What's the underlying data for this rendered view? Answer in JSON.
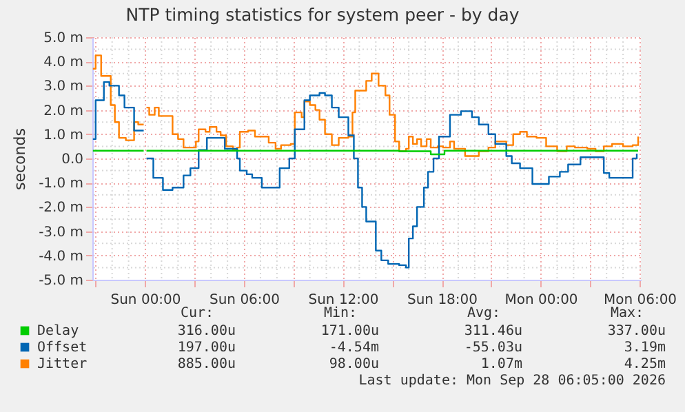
{
  "chart_data": {
    "type": "step",
    "title": "NTP timing statistics for system peer - by day",
    "ylabel": "seconds",
    "xlim": [
      "2026-09-26T20:48",
      "2026-09-28T06:05"
    ],
    "xticks": [
      {
        "value": "2026-09-26T21:00",
        "label": null
      },
      {
        "value": "2026-09-27T00:00",
        "label": "Sun 00:00"
      },
      {
        "value": "2026-09-27T03:00",
        "label": null
      },
      {
        "value": "2026-09-27T06:00",
        "label": "Sun 06:00"
      },
      {
        "value": "2026-09-27T09:00",
        "label": null
      },
      {
        "value": "2026-09-27T12:00",
        "label": "Sun 12:00"
      },
      {
        "value": "2026-09-27T15:00",
        "label": null
      },
      {
        "value": "2026-09-27T18:00",
        "label": "Sun 18:00"
      },
      {
        "value": "2026-09-27T21:00",
        "label": null
      },
      {
        "value": "2026-09-28T00:00",
        "label": "Mon 00:00"
      },
      {
        "value": "2026-09-28T03:00",
        "label": null
      },
      {
        "value": "2026-09-28T06:00",
        "label": "Mon 06:00"
      }
    ],
    "ylim": [
      -5,
      5
    ],
    "yticks": [
      {
        "value": -5,
        "label": "-5.0 m"
      },
      {
        "value": -4,
        "label": "-4.0 m"
      },
      {
        "value": -3,
        "label": "-3.0 m"
      },
      {
        "value": -2,
        "label": "-2.0 m"
      },
      {
        "value": -1,
        "label": "-1.0 m"
      },
      {
        "value": 0,
        "label": "0.0"
      },
      {
        "value": 1,
        "label": "1.0 m"
      },
      {
        "value": 2,
        "label": "2.0 m"
      },
      {
        "value": 3,
        "label": "3.0 m"
      },
      {
        "value": 4,
        "label": "4.0 m"
      },
      {
        "value": 5,
        "label": "5.0 m"
      }
    ],
    "grid": true,
    "legend": "bottom",
    "series": [
      {
        "name": "Delay",
        "color": "#00cc00",
        "x": [
          "2026-09-26T20:50",
          "2026-09-26T23:55",
          "2026-09-27T00:00",
          "2026-09-27T00:05",
          "2026-09-27T15:20",
          "2026-09-27T15:25",
          "2026-09-27T17:00",
          "2026-09-27T17:20",
          "2026-09-27T18:00",
          "2026-09-27T18:10",
          "2026-09-28T05:55"
        ],
        "values": [
          0.32,
          0.32,
          null,
          0.32,
          0.32,
          0.3,
          0.3,
          0.17,
          0.17,
          0.32,
          0.32
        ]
      },
      {
        "name": "Offset",
        "color": "#0066b3",
        "x": [
          "2026-09-26T20:50",
          "2026-09-26T21:00",
          "2026-09-26T21:30",
          "2026-09-26T21:50",
          "2026-09-26T22:25",
          "2026-09-26T22:45",
          "2026-09-26T23:20",
          "2026-09-26T23:55",
          "2026-09-27T00:00",
          "2026-09-27T00:05",
          "2026-09-27T00:30",
          "2026-09-27T01:05",
          "2026-09-27T01:40",
          "2026-09-27T02:20",
          "2026-09-27T02:45",
          "2026-09-27T03:15",
          "2026-09-27T03:45",
          "2026-09-27T04:50",
          "2026-09-27T05:35",
          "2026-09-27T05:45",
          "2026-09-27T06:10",
          "2026-09-27T06:30",
          "2026-09-27T07:05",
          "2026-09-27T08:10",
          "2026-09-27T08:45",
          "2026-09-27T09:05",
          "2026-09-27T09:40",
          "2026-09-27T10:00",
          "2026-09-27T10:35",
          "2026-09-27T10:55",
          "2026-09-27T11:20",
          "2026-09-27T11:45",
          "2026-09-27T12:20",
          "2026-09-27T12:40",
          "2026-09-27T12:55",
          "2026-09-27T13:10",
          "2026-09-27T13:25",
          "2026-09-27T14:00",
          "2026-09-27T14:20",
          "2026-09-27T14:45",
          "2026-09-27T15:25",
          "2026-09-27T15:50",
          "2026-09-27T16:00",
          "2026-09-27T16:15",
          "2026-09-27T16:30",
          "2026-09-27T16:55",
          "2026-09-27T17:10",
          "2026-09-27T17:30",
          "2026-09-27T17:50",
          "2026-09-27T18:30",
          "2026-09-27T19:10",
          "2026-09-27T19:50",
          "2026-09-27T20:15",
          "2026-09-27T20:50",
          "2026-09-27T21:15",
          "2026-09-27T21:55",
          "2026-09-27T22:15",
          "2026-09-27T22:45",
          "2026-09-27T23:30",
          "2026-09-28T00:30",
          "2026-09-28T01:10",
          "2026-09-28T01:40",
          "2026-09-28T02:25",
          "2026-09-28T02:50",
          "2026-09-28T03:50",
          "2026-09-28T04:10",
          "2026-09-28T05:25",
          "2026-09-28T05:35",
          "2026-09-28T05:50"
        ],
        "values": [
          0.8,
          2.4,
          3.15,
          3.0,
          2.6,
          2.1,
          1.15,
          1.15,
          null,
          0.0,
          -0.8,
          -1.3,
          -1.2,
          -0.7,
          -0.4,
          0.35,
          0.85,
          0.4,
          0.0,
          -0.5,
          -0.65,
          -0.8,
          -1.2,
          -0.4,
          0.0,
          1.2,
          2.4,
          2.6,
          2.7,
          2.6,
          2.1,
          1.7,
          0.95,
          0.0,
          -1.2,
          -2.0,
          -2.6,
          -3.8,
          -4.2,
          -4.35,
          -4.4,
          -4.5,
          -3.3,
          -2.8,
          -2.0,
          -1.2,
          -0.55,
          0.0,
          0.9,
          1.8,
          1.95,
          1.7,
          1.4,
          1.0,
          0.6,
          0.1,
          -0.2,
          -0.4,
          -1.05,
          -0.75,
          -0.55,
          -0.25,
          0.05,
          0.05,
          -0.6,
          -0.8,
          -0.8,
          0.0,
          0.2
        ]
      },
      {
        "name": "Jitter",
        "color": "#ff8000",
        "x": [
          "2026-09-26T20:50",
          "2026-09-26T21:00",
          "2026-09-26T21:15",
          "2026-09-26T21:20",
          "2026-09-26T21:35",
          "2026-09-26T21:55",
          "2026-09-26T22:10",
          "2026-09-26T22:25",
          "2026-09-26T22:50",
          "2026-09-26T23:20",
          "2026-09-26T23:35",
          "2026-09-26T23:55",
          "2026-09-27T00:00",
          "2026-09-27T00:05",
          "2026-09-27T00:15",
          "2026-09-27T00:35",
          "2026-09-27T00:50",
          "2026-09-27T01:15",
          "2026-09-27T01:40",
          "2026-09-27T02:00",
          "2026-09-27T02:20",
          "2026-09-27T02:45",
          "2026-09-27T03:05",
          "2026-09-27T03:15",
          "2026-09-27T03:40",
          "2026-09-27T03:55",
          "2026-09-27T04:20",
          "2026-09-27T04:35",
          "2026-09-27T04:55",
          "2026-09-27T05:20",
          "2026-09-27T05:35",
          "2026-09-27T05:45",
          "2026-09-27T06:15",
          "2026-09-27T06:40",
          "2026-09-27T07:05",
          "2026-09-27T07:30",
          "2026-09-27T07:55",
          "2026-09-27T08:15",
          "2026-09-27T08:50",
          "2026-09-27T09:05",
          "2026-09-27T09:30",
          "2026-09-27T09:40",
          "2026-09-27T10:00",
          "2026-09-27T10:20",
          "2026-09-27T10:35",
          "2026-09-27T10:55",
          "2026-09-27T11:20",
          "2026-09-27T11:45",
          "2026-09-27T12:05",
          "2026-09-27T12:20",
          "2026-09-27T12:35",
          "2026-09-27T12:45",
          "2026-09-27T13:10",
          "2026-09-27T13:25",
          "2026-09-27T13:45",
          "2026-09-27T14:00",
          "2026-09-27T14:10",
          "2026-09-27T14:35",
          "2026-09-27T14:50",
          "2026-09-27T15:10",
          "2026-09-27T15:25",
          "2026-09-27T15:50",
          "2026-09-27T16:00",
          "2026-09-27T16:15",
          "2026-09-27T16:30",
          "2026-09-27T16:45",
          "2026-09-27T17:05",
          "2026-09-27T17:20",
          "2026-09-27T17:45",
          "2026-09-27T18:05",
          "2026-09-27T18:30",
          "2026-09-27T18:45",
          "2026-09-27T19:25",
          "2026-09-27T19:50",
          "2026-09-27T20:15",
          "2026-09-27T20:50",
          "2026-09-27T21:15",
          "2026-09-27T21:55",
          "2026-09-27T22:20",
          "2026-09-27T22:45",
          "2026-09-27T23:10",
          "2026-09-27T23:45",
          "2026-09-28T00:20",
          "2026-09-28T01:00",
          "2026-09-28T01:35",
          "2026-09-28T02:05",
          "2026-09-28T02:50",
          "2026-09-28T03:20",
          "2026-09-28T03:50",
          "2026-09-28T04:20",
          "2026-09-28T05:00",
          "2026-09-28T05:35",
          "2026-09-28T05:55"
        ],
        "values": [
          3.7,
          4.25,
          4.25,
          3.4,
          3.4,
          2.2,
          1.5,
          0.85,
          0.75,
          1.5,
          1.4,
          1.4,
          null,
          2.1,
          1.8,
          2.1,
          1.75,
          1.75,
          1.0,
          0.8,
          0.45,
          0.45,
          0.7,
          1.2,
          1.1,
          1.3,
          1.1,
          0.95,
          0.5,
          0.35,
          0.45,
          1.1,
          1.15,
          0.9,
          0.9,
          0.65,
          0.4,
          0.55,
          0.6,
          1.9,
          1.7,
          2.35,
          2.2,
          2.0,
          1.6,
          1.0,
          0.55,
          0.85,
          0.85,
          0.9,
          1.9,
          2.8,
          2.8,
          3.2,
          3.5,
          3.5,
          3.0,
          2.6,
          1.8,
          0.7,
          0.3,
          0.4,
          0.9,
          0.6,
          0.8,
          0.5,
          0.8,
          0.45,
          0.5,
          0.45,
          0.7,
          0.4,
          0.1,
          0.1,
          0.3,
          0.45,
          0.7,
          0.55,
          1.0,
          1.1,
          0.9,
          0.85,
          0.5,
          0.3,
          0.5,
          0.45,
          0.4,
          0.3,
          0.5,
          0.6,
          0.5,
          0.55,
          0.9
        ]
      }
    ],
    "annotations": [
      "Cur:",
      "Min:",
      "Avg:",
      "Max:",
      "316.00u",
      "171.00u",
      "311.46u",
      "337.00u",
      "197.00u",
      "-4.54m",
      "-55.03u",
      "3.19m",
      "885.00u",
      "98.00u",
      "1.07m",
      "4.25m",
      "Last update: Mon Sep 28 06:05:00 2026"
    ]
  }
}
